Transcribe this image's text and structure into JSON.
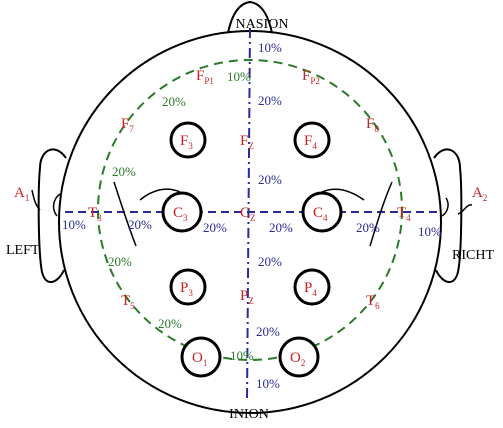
{
  "landmarks": {
    "nasion": "NASION",
    "inion": "INION",
    "left": "LEFT",
    "right": "RICHT"
  },
  "electrodes": {
    "fp1": {
      "main": "F",
      "sub": "P1"
    },
    "fp2": {
      "main": "F",
      "sub": "P2"
    },
    "f7": {
      "main": "F",
      "sub": "7"
    },
    "f3": {
      "main": "F",
      "sub": "3"
    },
    "fz": {
      "main": "F",
      "sub": "Z"
    },
    "f4": {
      "main": "F",
      "sub": "4"
    },
    "f8": {
      "main": "F",
      "sub": "8"
    },
    "a1": {
      "main": "A",
      "sub": "1"
    },
    "t3": {
      "main": "T",
      "sub": "3"
    },
    "c3": {
      "main": "C",
      "sub": "3"
    },
    "cz": {
      "main": "C",
      "sub": "Z"
    },
    "c4": {
      "main": "C",
      "sub": "4"
    },
    "t4": {
      "main": "T",
      "sub": "4"
    },
    "a2": {
      "main": "A",
      "sub": "2"
    },
    "t5": {
      "main": "T",
      "sub": "5"
    },
    "p3": {
      "main": "P",
      "sub": "3"
    },
    "pz": {
      "main": "P",
      "sub": "Z"
    },
    "p4": {
      "main": "P",
      "sub": "4"
    },
    "t6": {
      "main": "T",
      "sub": "6"
    },
    "o1": {
      "main": "O",
      "sub": "1"
    },
    "o2": {
      "main": "O",
      "sub": "2"
    }
  },
  "percent_labels": {
    "midline": [
      "10%",
      "20%",
      "20%",
      "20%",
      "20%",
      "10%"
    ],
    "coronal": [
      "10%",
      "20%",
      "20%",
      "20%",
      "20%",
      "10%"
    ],
    "circumference": [
      "10%",
      "20%",
      "20%",
      "20%",
      "20%",
      "10%"
    ]
  },
  "colors": {
    "electrode_text": "#cc2020",
    "midline": "#2a2a9a",
    "circumference": "#2a7a2a",
    "outline": "#000000"
  }
}
